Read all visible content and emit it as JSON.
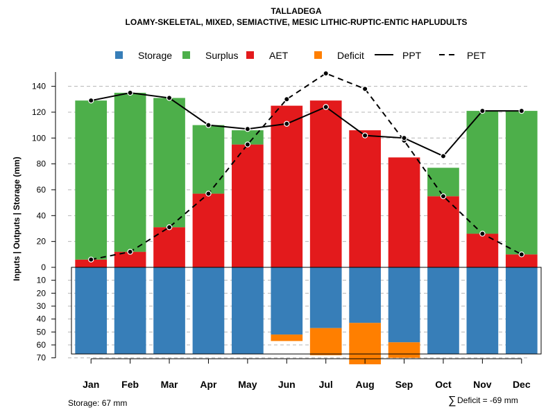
{
  "chart_data": {
    "type": "bar",
    "title": "TALLADEGA",
    "subtitle": "LOAMY-SKELETAL, MIXED, SEMIACTIVE, MESIC LITHIC-RUPTIC-ENTIC HAPLUDULTS",
    "ylabel": "Inputs | Outputs | Storage    (mm)",
    "categories": [
      "Jan",
      "Feb",
      "Mar",
      "Apr",
      "May",
      "Jun",
      "Jul",
      "Aug",
      "Sep",
      "Oct",
      "Nov",
      "Dec"
    ],
    "ylim_upper": [
      0,
      150
    ],
    "ylim_lower": [
      0,
      70
    ],
    "yticks_upper": [
      0,
      20,
      40,
      60,
      80,
      100,
      120,
      140
    ],
    "yticks_lower": [
      10,
      20,
      30,
      40,
      50,
      60,
      70
    ],
    "series": [
      {
        "name": "AET",
        "color": "#E31A1C",
        "values": [
          6,
          12,
          31,
          57,
          95,
          125,
          129,
          106,
          85,
          55,
          26,
          10
        ]
      },
      {
        "name": "Surplus",
        "color": "#4DAF4A",
        "values": [
          123,
          123,
          100,
          53,
          11,
          0,
          0,
          0,
          0,
          22,
          95,
          111
        ]
      },
      {
        "name": "Storage",
        "color": "#377EB8",
        "values": [
          67,
          67,
          67,
          67,
          67,
          52,
          47,
          43,
          58,
          67,
          67,
          67
        ]
      },
      {
        "name": "Deficit",
        "color": "#FF7F00",
        "values": [
          0,
          0,
          0,
          0,
          0,
          5,
          21,
          32,
          12,
          0,
          0,
          0
        ]
      },
      {
        "name": "PPT",
        "color": "#000000",
        "line": "solid",
        "values": [
          129,
          135,
          131,
          110,
          107,
          111,
          124,
          102,
          100,
          86,
          121,
          121
        ]
      },
      {
        "name": "PET",
        "color": "#000000",
        "line": "dashed",
        "values": [
          6,
          12,
          31,
          57,
          95,
          130,
          150,
          138,
          98,
          55,
          26,
          10
        ]
      }
    ],
    "legend": [
      {
        "label": "Storage",
        "kind": "square",
        "color": "#377EB8"
      },
      {
        "label": "Surplus",
        "kind": "square",
        "color": "#4DAF4A"
      },
      {
        "label": "AET",
        "kind": "square",
        "color": "#E31A1C"
      },
      {
        "label": "Deficit",
        "kind": "square",
        "color": "#FF7F00"
      },
      {
        "label": "PPT",
        "kind": "solid"
      },
      {
        "label": "PET",
        "kind": "dashed"
      }
    ],
    "legend_position": "top",
    "grid": true,
    "storage_capacity": 67
  },
  "footer": {
    "storage_label": "Storage: 67 mm",
    "deficit_symbol": "∑",
    "deficit_label": "Deficit = -69 mm"
  }
}
